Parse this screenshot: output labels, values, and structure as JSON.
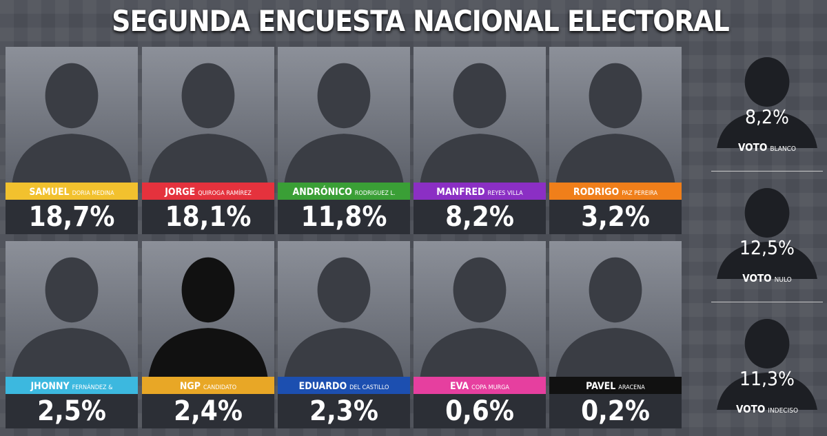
{
  "title": "SEGUNDA ENCUESTA NACIONAL ELECTORAL",
  "candidates": [
    {
      "first": "SAMUEL",
      "last": "DORIA MEDINA",
      "value": "18,7%",
      "color": "#f2c12e"
    },
    {
      "first": "JORGE",
      "last": "QUIROGA RAMÍREZ",
      "value": "18,1%",
      "color": "#e5323d"
    },
    {
      "first": "ANDRÓNICO",
      "last": "RODRIGUEZ L.",
      "value": "11,8%",
      "color": "#3a9f36"
    },
    {
      "first": "MANFRED",
      "last": "REYES VILLA",
      "value": "8,2%",
      "color": "#8b2fc4"
    },
    {
      "first": "RODRIGO",
      "last": "PAZ PEREIRA",
      "value": "3,2%",
      "color": "#f07f1a"
    },
    {
      "first": "JHONNY",
      "last": "FERNÁNDEZ &",
      "value": "2,5%",
      "color": "#3cb8df"
    },
    {
      "first": "NGP",
      "last": "CANDIDATO",
      "value": "2,4%",
      "color": "#e8a726"
    },
    {
      "first": "EDUARDO",
      "last": "DEL CASTILLO",
      "value": "2,3%",
      "color": "#1c4fb0"
    },
    {
      "first": "EVA",
      "last": "COPA MURGA",
      "value": "0,6%",
      "color": "#e63f9f"
    },
    {
      "first": "PAVEL",
      "last": "ARACENA",
      "value": "0,2%",
      "color": "#111111"
    }
  ],
  "others": [
    {
      "value": "8,2%",
      "label": "VOTO",
      "sub": "BLANCO"
    },
    {
      "value": "12,5%",
      "label": "VOTO",
      "sub": "NULO"
    },
    {
      "value": "11,3%",
      "label": "VOTO",
      "sub": "INDECISO"
    }
  ]
}
